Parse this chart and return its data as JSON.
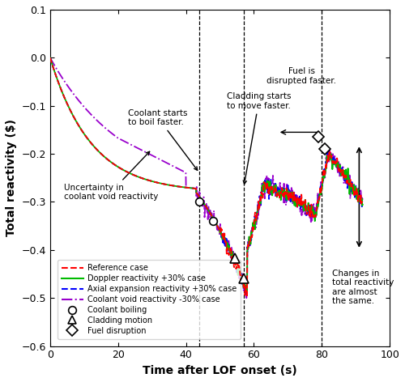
{
  "xlabel": "Time after LOF onset (s)",
  "ylabel": "Total reactivity ($)",
  "xlim": [
    0,
    100
  ],
  "ylim": [
    -0.6,
    0.1
  ],
  "yticks": [
    0.1,
    0.0,
    -0.1,
    -0.2,
    -0.3,
    -0.4,
    -0.5,
    -0.6
  ],
  "xticks": [
    0,
    20,
    40,
    60,
    80,
    100
  ],
  "colors": {
    "reference": "#FF0000",
    "doppler": "#00BB00",
    "axial": "#0000FF",
    "coolant_void": "#9900CC"
  }
}
